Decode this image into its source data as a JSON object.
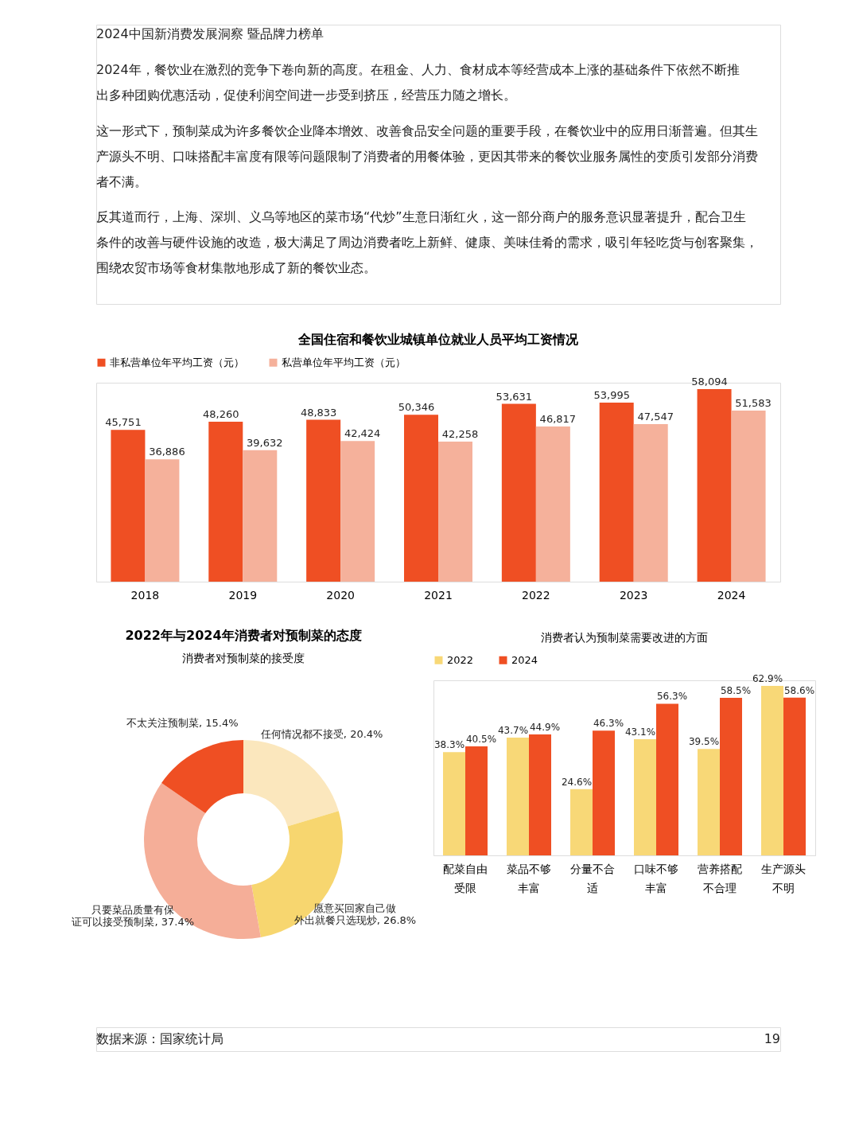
{
  "chart_data": [
    {
      "type": "bar",
      "title": "全国住宿和餐饮业城镇单位就业人员平均工资情况",
      "categories": [
        "2018",
        "2019",
        "2020",
        "2021",
        "2022",
        "2023",
        "2024"
      ],
      "series": [
        {
          "name": "非私营单位年平均工资（元）",
          "color": "#ef4f23",
          "values": [
            45751,
            48260,
            48833,
            50346,
            53631,
            53995,
            58094
          ],
          "value_labels": [
            "45,751",
            "48,260",
            "48,833",
            "50,346",
            "53,631",
            "53,995",
            "58,094"
          ]
        },
        {
          "name": "私营单位年平均工资（元）",
          "color": "#f5b19b",
          "values": [
            36886,
            39632,
            42424,
            42258,
            46817,
            47547,
            51583
          ],
          "value_labels": [
            "36,886",
            "39,632",
            "42,424",
            "42,258",
            "46,817",
            "47,547",
            "51,583"
          ]
        }
      ],
      "legend": "top",
      "annotations": [
        "2024中国新消费发展洞察 暨品牌力榜单",
        "2024年，餐饮业在激烈的竞争下卷向新的高度。在租金、人力、食材成本等经营成本上涨的基础条件下依然不断推出多种团购优惠活动，促使利润空间进一步受到挤压，经营压力随之增长。",
        "这一形式下，预制菜成为许多餐饮企业降本增效、改善食品安全问题的重要手段，在餐饮业中的应用日渐普遍。但其生产源头不明、口味搭配丰富度有限等问题限制了消费者的用餐体验，更因其带来的餐饮业服务属性的变质引发部分消费者不满。",
        "反其道而行，上海、深圳、义乌等地区的菜市场“代炒”生意日渐红火，这一部分商户的服务意识显著提升，配合卫生条件的改善与硬件设施的改造，极大满足了周边消费者吃上新鲜、健康、美味佳肴的需求，吸引年轻吃货与创客聚集，围绕农贸市场等食材集散地形成了新的餐饮业态。"
      ]
    },
    {
      "type": "donut",
      "title": "2022年与2024年消费者对预制菜的态度",
      "subtitle": "消费者对预制菜的接受度",
      "categories": [
        "任何情况都不接受",
        "愿意买回家自己做外出就餐只选现炒",
        "只要菜品质量有保证可以接受预制菜",
        "不太关注预制菜"
      ],
      "values": [
        20.4,
        26.8,
        37.4,
        15.4
      ],
      "colors": [
        "#fbe7bd",
        "#f7d66f",
        "#f5ae98",
        "#ef4f23"
      ],
      "value_labels": [
        "20.4%",
        "26.8%",
        "37.4%",
        "15.4%"
      ]
    },
    {
      "type": "bar",
      "title": "消费者认为预制菜需要改进的方面",
      "categories": [
        "配菜自由受限",
        "菜品不够丰富",
        "分量不合适",
        "口味不够丰富",
        "营养搭配不合理",
        "生产源头不明"
      ],
      "series": [
        {
          "name": "2022",
          "color": "#f8d877",
          "values": [
            38.3,
            43.7,
            24.6,
            43.1,
            39.5,
            62.9
          ],
          "value_labels": [
            "38.3%",
            "43.7%",
            "24.6%",
            "43.1%",
            "39.5%",
            "62.9%"
          ]
        },
        {
          "name": "2024",
          "color": "#ef4f23",
          "values": [
            40.5,
            44.9,
            46.3,
            56.3,
            58.5,
            58.6
          ],
          "value_labels": [
            "40.5%",
            "44.9%",
            "46.3%",
            "56.3%",
            "58.5%",
            "58.6%"
          ]
        }
      ],
      "legend": "top",
      "annotations": [
        "数据来源：国家统计局",
        "19"
      ]
    }
  ]
}
